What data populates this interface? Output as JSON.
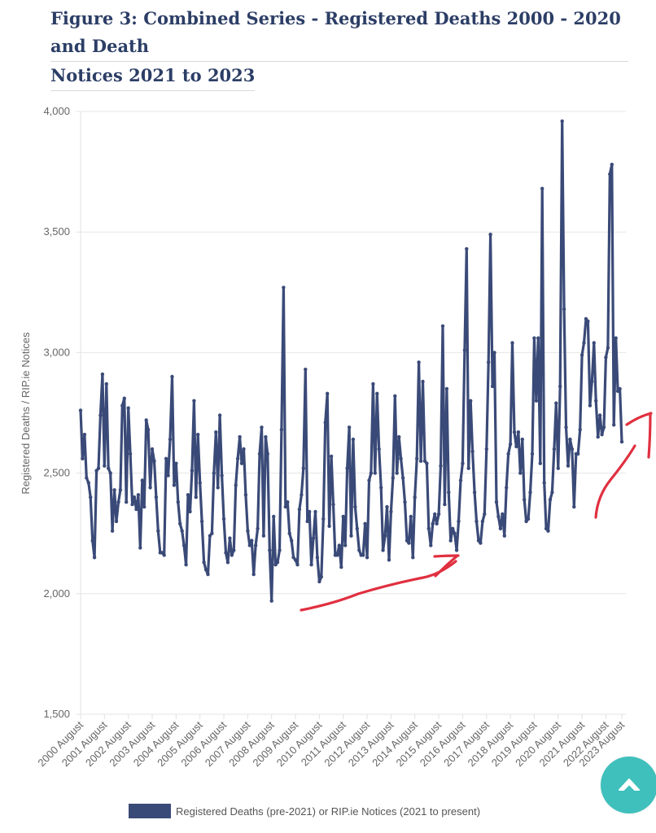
{
  "title_lines": [
    "Figure 3: Combined Series - Registered Deaths 2000 - 2020 and Death",
    "Notices 2021 to 2023"
  ],
  "scroll_top_icon": "chevron-up-icon",
  "colors": {
    "series": "#3a4a78",
    "annotation": "#e03040",
    "grid": "#e6e6e6",
    "button": "#3fc0bc"
  },
  "chart_data": {
    "type": "line",
    "ylabel": "Registered Deaths / RIP.ie Notices",
    "ylim": [
      1500,
      4000
    ],
    "yticks": [
      1500,
      2000,
      2500,
      3000,
      3500,
      4000
    ],
    "ytick_labels": [
      "1,500",
      "2,000",
      "2,500",
      "3,000",
      "3,500",
      "4,000"
    ],
    "x_tick_labels": [
      "2000 August",
      "2001 August",
      "2002 August",
      "2003 August",
      "2004 August",
      "2005 August",
      "2006 August",
      "2007 August",
      "2008 August",
      "2009 August",
      "2010 August",
      "2011 August",
      "2012 August",
      "2013 August",
      "2014 August",
      "2015 August",
      "2016 August",
      "2017 August",
      "2018 August",
      "2019 August",
      "2020 August",
      "2021 August",
      "2022 August",
      "2023 August"
    ],
    "x_start": "2000-08",
    "x_end": "2023-12",
    "legend_position": "bottom",
    "grid": true,
    "series": [
      {
        "name": "Registered Deaths (pre-2021) or RIP.ie Notices (2021 to present)",
        "values": [
          2760,
          2560,
          2660,
          2480,
          2460,
          2400,
          2220,
          2150,
          2510,
          2520,
          2740,
          2910,
          2530,
          2870,
          2520,
          2500,
          2260,
          2430,
          2300,
          2380,
          2430,
          2780,
          2810,
          2380,
          2770,
          2580,
          2370,
          2400,
          2350,
          2410,
          2190,
          2470,
          2360,
          2720,
          2680,
          2440,
          2600,
          2550,
          2400,
          2260,
          2170,
          2170,
          2160,
          2560,
          2490,
          2640,
          2900,
          2450,
          2540,
          2380,
          2290,
          2260,
          2200,
          2120,
          2410,
          2340,
          2510,
          2800,
          2400,
          2660,
          2460,
          2300,
          2130,
          2100,
          2080,
          2240,
          2250,
          2500,
          2670,
          2440,
          2740,
          2490,
          2310,
          2170,
          2130,
          2230,
          2160,
          2180,
          2450,
          2560,
          2650,
          2540,
          2600,
          2410,
          2260,
          2200,
          2220,
          2080,
          2200,
          2270,
          2580,
          2690,
          2240,
          2650,
          2580,
          2180,
          1970,
          2320,
          2120,
          2130,
          2180,
          2680,
          3270,
          2360,
          2380,
          2250,
          2220,
          2150,
          2140,
          2120,
          2350,
          2410,
          2520,
          2930,
          2300,
          2340,
          2120,
          2230,
          2340,
          2150,
          2050,
          2070,
          2310,
          2710,
          2830,
          2280,
          2570,
          2370,
          2160,
          2160,
          2200,
          2110,
          2320,
          2200,
          2520,
          2690,
          2240,
          2640,
          2360,
          2270,
          2180,
          2160,
          2160,
          2290,
          2150,
          2470,
          2500,
          2870,
          2500,
          2830,
          2600,
          2440,
          2180,
          2240,
          2360,
          2140,
          2340,
          2480,
          2820,
          2500,
          2650,
          2560,
          2480,
          2380,
          2220,
          2210,
          2320,
          2150,
          2400,
          2560,
          2960,
          2550,
          2880,
          2550,
          2540,
          2270,
          2200,
          2290,
          2330,
          2290,
          2330,
          2530,
          3110,
          2370,
          2850,
          2420,
          2220,
          2270,
          2250,
          2180,
          2300,
          2470,
          2540,
          3010,
          3430,
          2520,
          2800,
          2590,
          2420,
          2300,
          2220,
          2210,
          2300,
          2330,
          2600,
          2960,
          3490,
          2860,
          3000,
          2380,
          2320,
          2270,
          2330,
          2240,
          2440,
          2580,
          2620,
          3040,
          2670,
          2610,
          2670,
          2500,
          2640,
          2390,
          2300,
          2310,
          2420,
          2580,
          3060,
          2800,
          3060,
          2540,
          3680,
          2460,
          2270,
          2260,
          2390,
          2420,
          2600,
          2790,
          2520,
          2860,
          3960,
          3180,
          2690,
          2530,
          2640,
          2600,
          2360,
          2580,
          2580,
          2680,
          2990,
          3040,
          3140,
          3130,
          2780,
          2880,
          3040,
          2800,
          2650,
          2740,
          2660,
          2690,
          2980,
          3020,
          3740,
          3780,
          2700,
          3060,
          2840,
          2850,
          2630
        ]
      }
    ]
  }
}
